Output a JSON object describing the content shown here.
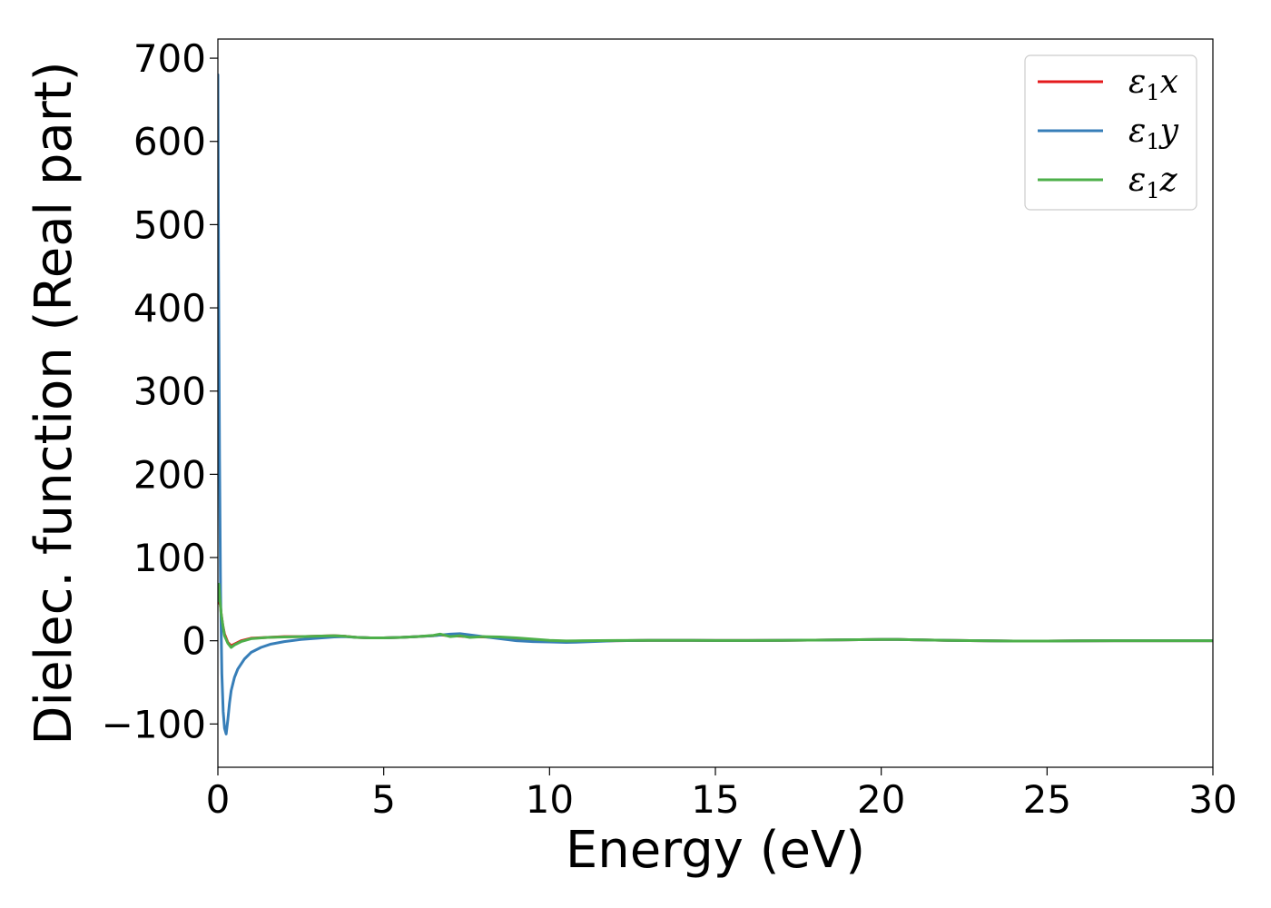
{
  "chart_data": {
    "type": "line",
    "title": "",
    "xlabel": "Energy (eV)",
    "ylabel": "Dielec. function (Real part)",
    "xlim": [
      0,
      30
    ],
    "ylim": [
      -152,
      723
    ],
    "xticks": [
      0,
      5,
      10,
      15,
      20,
      25,
      30
    ],
    "xtick_labels": [
      "0",
      "5",
      "10",
      "15",
      "20",
      "25",
      "30"
    ],
    "yticks": [
      -100,
      0,
      100,
      200,
      300,
      400,
      500,
      600,
      700
    ],
    "ytick_labels": [
      "−100",
      "0",
      "100",
      "200",
      "300",
      "400",
      "500",
      "600",
      "700"
    ],
    "grid": false,
    "legend_position": "top-right",
    "series": [
      {
        "name": "ε₁x",
        "label_main": "ε",
        "label_sub": "1",
        "label_tail": "x",
        "color": "#e41a1c",
        "x": [
          0.0,
          0.03,
          0.06,
          0.1,
          0.15,
          0.2,
          0.3,
          0.4,
          0.5,
          0.7,
          1.0,
          1.5,
          2.0,
          2.5,
          3.0,
          3.5,
          3.8,
          4.2,
          4.6,
          5.0,
          5.5,
          6.0,
          6.5,
          6.7,
          7.0,
          7.3,
          7.6,
          8.0,
          8.5,
          9.0,
          9.5,
          10.0,
          10.5,
          11.0,
          12.0,
          13.0,
          14.0,
          15.0,
          16.0,
          17.0,
          18.0,
          19.0,
          20.0,
          20.5,
          21.0,
          22.0,
          23.0,
          24.0,
          25.0,
          26.0,
          27.0,
          28.0,
          29.0,
          30.0
        ],
        "y": [
          45,
          60,
          48,
          32,
          18,
          8,
          -2,
          -6,
          -4,
          0,
          3,
          4,
          5,
          5,
          5.5,
          6,
          5.5,
          4,
          3.5,
          3.5,
          4,
          5,
          6,
          7,
          6,
          5.5,
          5,
          4.5,
          4,
          3,
          1.5,
          0,
          -0.5,
          -0.5,
          0,
          0.5,
          0.5,
          0.3,
          0.3,
          0.5,
          0.8,
          1.2,
          1.5,
          1.5,
          1.2,
          0.5,
          0,
          -0.3,
          -0.3,
          -0.1,
          0,
          0.1,
          0.1,
          0.1
        ]
      },
      {
        "name": "ε₁y",
        "label_main": "ε",
        "label_sub": "1",
        "label_tail": "y",
        "color": "#377eb8",
        "x": [
          0.0,
          0.02,
          0.05,
          0.08,
          0.12,
          0.16,
          0.2,
          0.25,
          0.3,
          0.35,
          0.4,
          0.5,
          0.6,
          0.8,
          1.0,
          1.3,
          1.6,
          2.0,
          2.5,
          3.0,
          3.5,
          3.8,
          4.2,
          4.6,
          5.0,
          5.5,
          6.0,
          6.5,
          7.0,
          7.3,
          7.6,
          8.0,
          8.5,
          9.0,
          9.5,
          10.0,
          10.5,
          11.0,
          12.0,
          13.0,
          14.0,
          15.0,
          16.0,
          17.0,
          18.0,
          19.0,
          20.0,
          20.5,
          21.0,
          22.0,
          23.0,
          24.0,
          25.0,
          26.0,
          27.0,
          28.0,
          29.0,
          30.0
        ],
        "y": [
          680,
          450,
          220,
          60,
          -40,
          -85,
          -105,
          -112,
          -95,
          -75,
          -60,
          -44,
          -34,
          -22,
          -14,
          -8,
          -4,
          -1,
          1.5,
          3,
          4.5,
          5,
          4,
          3.5,
          3.5,
          4,
          5,
          6,
          8,
          8.5,
          7,
          5,
          2.5,
          0,
          -1,
          -1.5,
          -2,
          -1.5,
          0,
          0.5,
          0.5,
          0.3,
          0.3,
          0.5,
          0.8,
          1.2,
          1.5,
          1.5,
          1.2,
          0.5,
          0,
          -0.3,
          -0.3,
          -0.1,
          0,
          0.1,
          0.1,
          0.1
        ]
      },
      {
        "name": "ε₁z",
        "label_main": "ε",
        "label_sub": "1",
        "label_tail": "z",
        "color": "#4daf4a",
        "x": [
          0.0,
          0.03,
          0.06,
          0.1,
          0.15,
          0.2,
          0.3,
          0.4,
          0.5,
          0.7,
          1.0,
          1.5,
          2.0,
          2.5,
          3.0,
          3.5,
          3.8,
          4.2,
          4.6,
          5.0,
          5.5,
          6.0,
          6.5,
          6.7,
          7.0,
          7.3,
          7.6,
          8.0,
          8.5,
          9.0,
          9.5,
          10.0,
          10.5,
          11.0,
          12.0,
          13.0,
          14.0,
          15.0,
          16.0,
          17.0,
          18.0,
          19.0,
          20.0,
          20.5,
          21.0,
          22.0,
          23.0,
          24.0,
          25.0,
          26.0,
          27.0,
          28.0,
          29.0,
          30.0
        ],
        "y": [
          48,
          68,
          50,
          32,
          18,
          6,
          -3,
          -8,
          -5,
          -1,
          2.5,
          4,
          4.5,
          5,
          5.5,
          6,
          5.5,
          4,
          3.5,
          3.5,
          4,
          5,
          6.5,
          8,
          5,
          6,
          4,
          5,
          4.5,
          3.5,
          2,
          0.5,
          -0.2,
          0,
          0.3,
          0.5,
          0.5,
          0.3,
          0.3,
          0.5,
          0.8,
          1.2,
          1.5,
          1.5,
          1.2,
          0.5,
          0,
          -0.3,
          -0.3,
          -0.1,
          0,
          0.1,
          0.1,
          0.1
        ]
      }
    ]
  }
}
